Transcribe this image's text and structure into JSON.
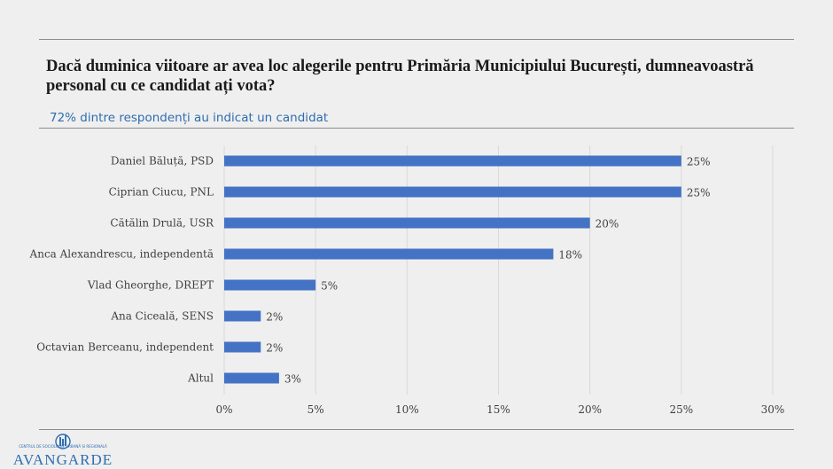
{
  "header": {
    "title": "Dacă duminica viitoare ar avea loc alegerile pentru Primăria Municipiului București, dumneavoastră personal cu ce candidat ați vota?",
    "subtitle": "72% dintre respondenți au indicat un candidat"
  },
  "logo": {
    "name": "AVANGARDE",
    "tagline": "CENTRUL DE SOCIOLOGIE URBANĂ ȘI REGIONALĂ",
    "icon": "avangarde-logo-icon"
  },
  "colors": {
    "bar": "#4472c4",
    "subtitle": "#2e6db0",
    "grid": "#d9d9d9"
  },
  "chart_data": {
    "type": "bar",
    "orientation": "horizontal",
    "categories": [
      "Daniel Băluță, PSD",
      "Ciprian Ciucu, PNL",
      "Cătălin Drulă, USR",
      "Anca Alexandrescu, independentă",
      "Vlad Gheorghe, DREPT",
      "Ana Ciceală, SENS",
      "Octavian Berceanu, independent",
      "Altul"
    ],
    "values": [
      25,
      25,
      20,
      18,
      5,
      2,
      2,
      3
    ],
    "data_labels": [
      "25%",
      "25%",
      "20%",
      "18%",
      "5%",
      "2%",
      "2%",
      "3%"
    ],
    "xlim": [
      0,
      30
    ],
    "x_ticks": [
      "0%",
      "5%",
      "10%",
      "15%",
      "20%",
      "25%",
      "30%"
    ],
    "grid": true,
    "legend": "none"
  }
}
